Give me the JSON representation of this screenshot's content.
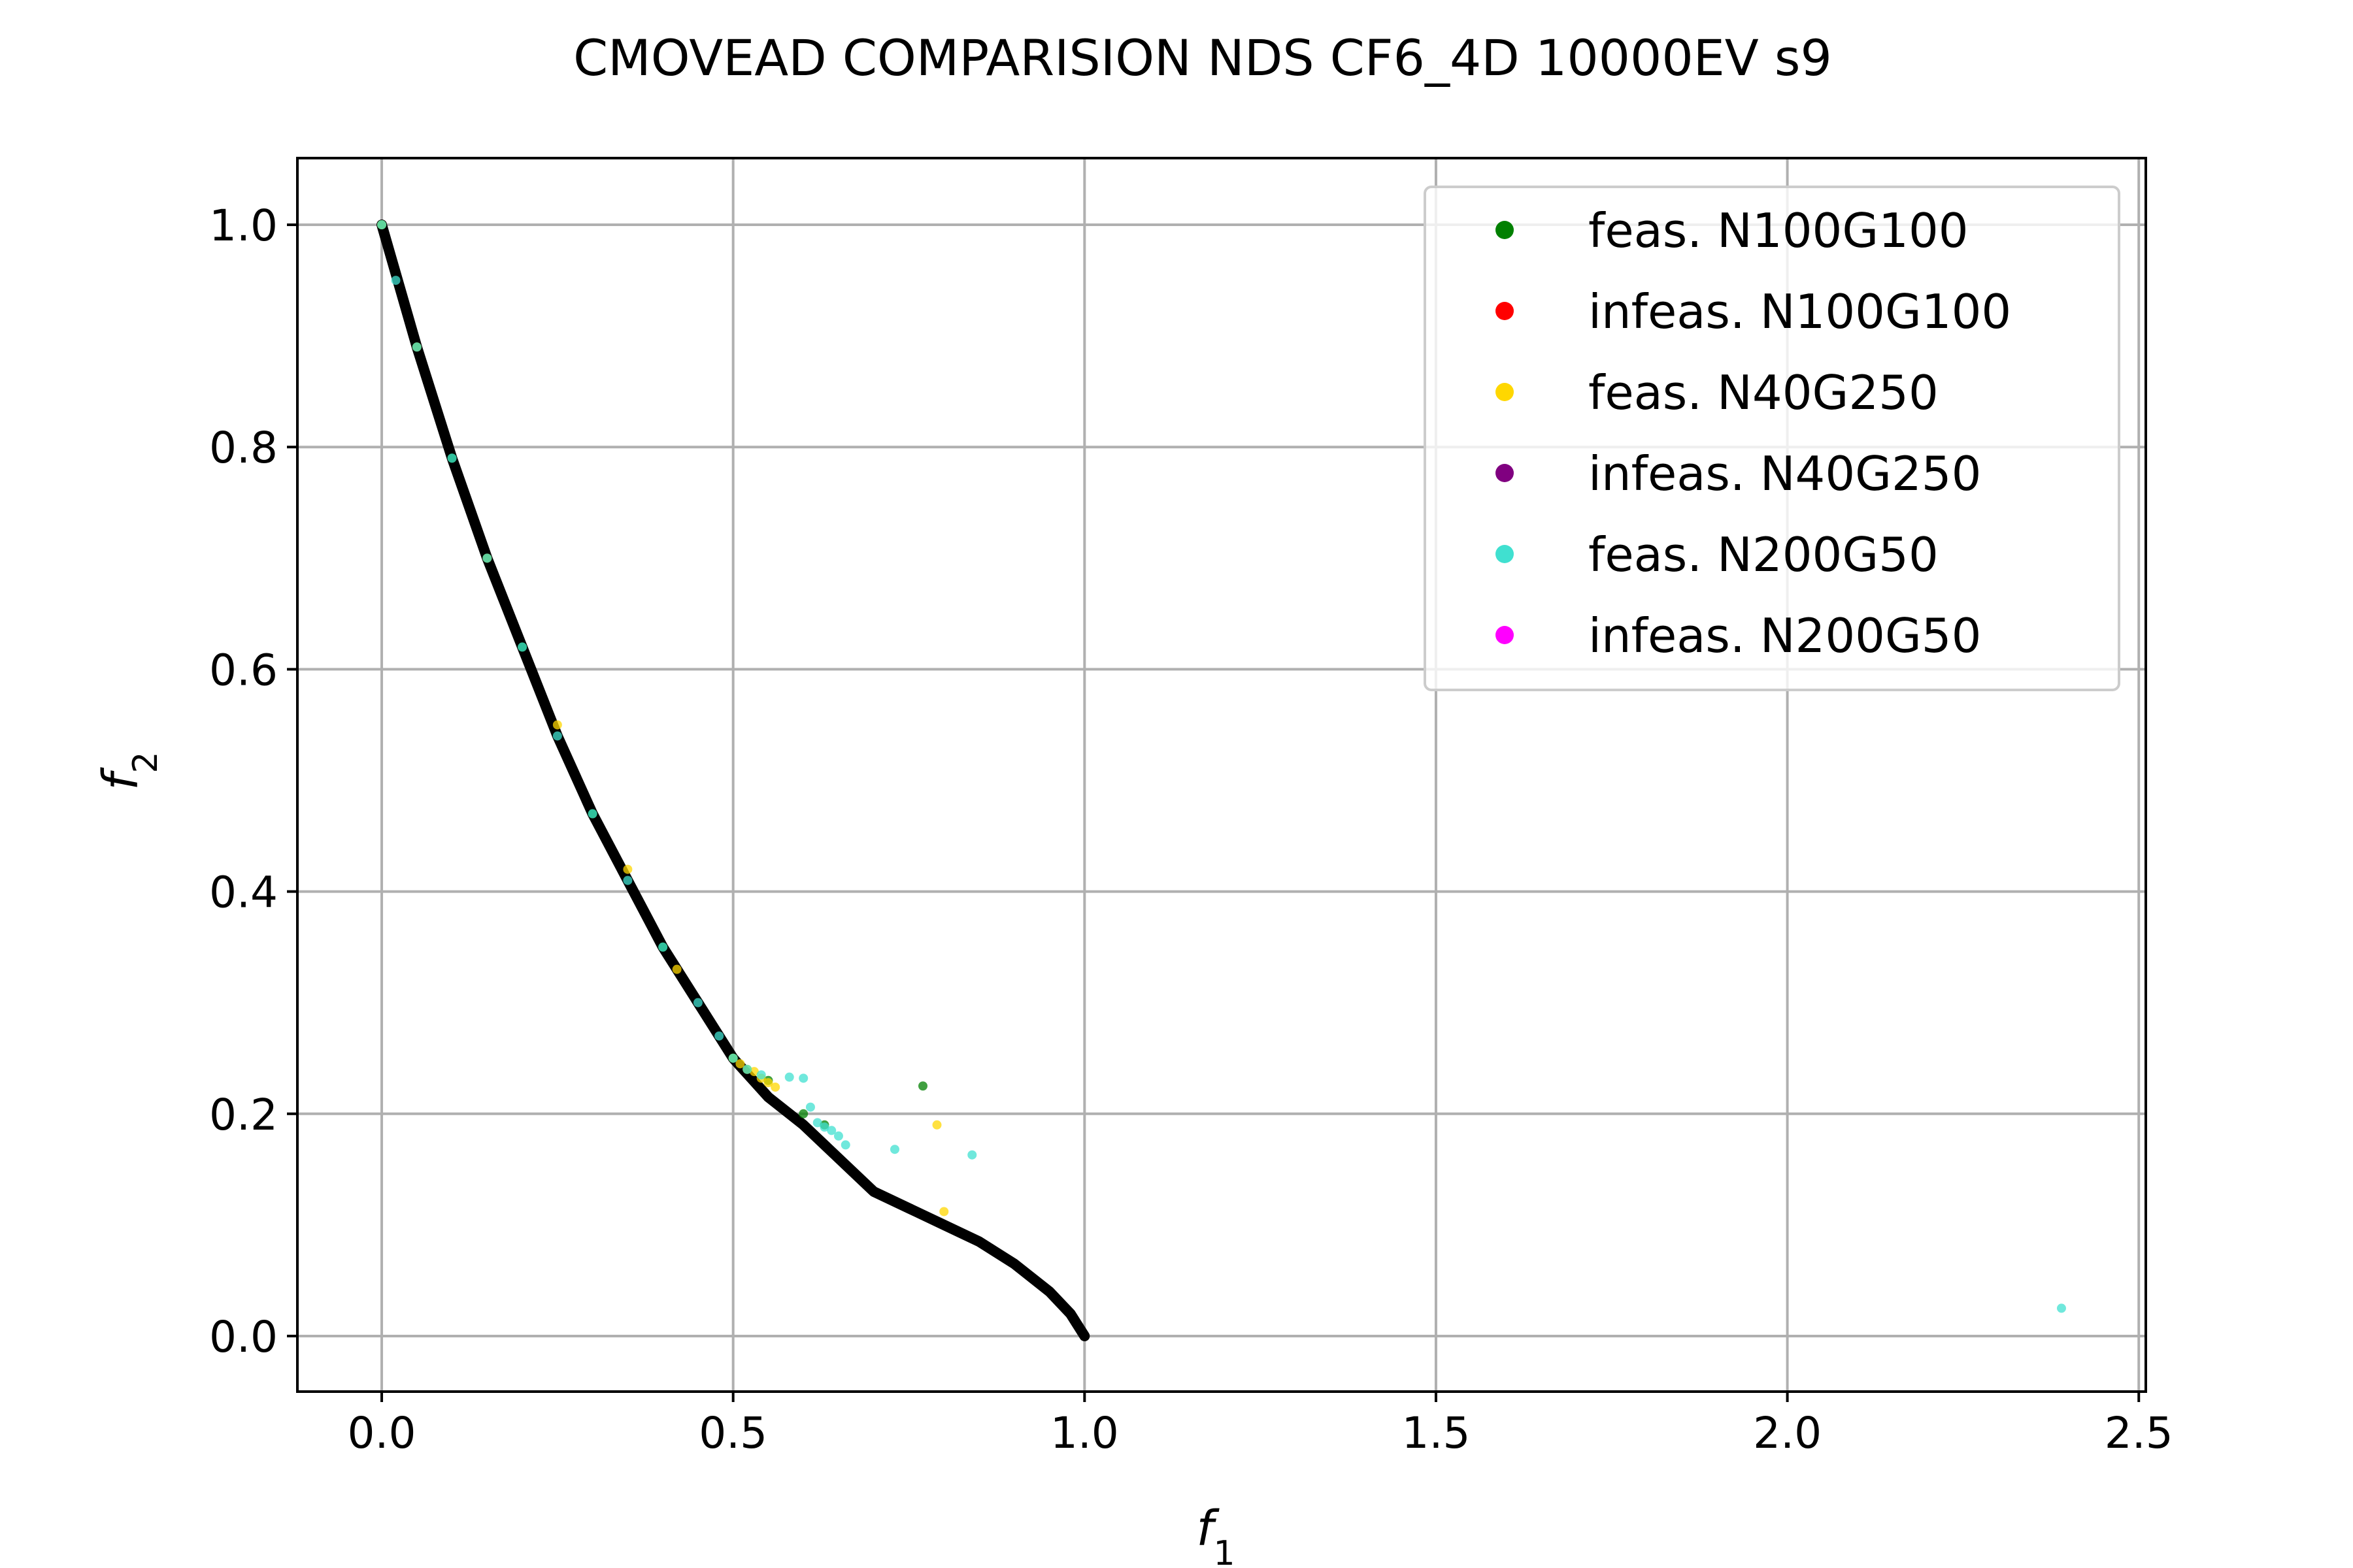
{
  "chart_data": {
    "type": "scatter",
    "title": "CMOVEAD COMPARISION NDS CF6_4D 10000EV s9",
    "xlabel": "f",
    "xlabel_sub": "1",
    "ylabel": "f",
    "ylabel_sub": "2",
    "xlim": [
      -0.12,
      2.51
    ],
    "ylim": [
      -0.05,
      1.06
    ],
    "xticks": [
      0.0,
      0.5,
      1.0,
      1.5,
      2.0,
      2.5
    ],
    "xtick_labels": [
      "0.0",
      "0.5",
      "1.0",
      "1.5",
      "2.0",
      "2.5"
    ],
    "yticks": [
      0.0,
      0.2,
      0.4,
      0.6,
      0.8,
      1.0
    ],
    "ytick_labels": [
      "0.0",
      "0.2",
      "0.4",
      "0.6",
      "0.8",
      "1.0"
    ],
    "grid": true,
    "legend_position": "top-right",
    "reference_front": {
      "color": "#000000",
      "x": [
        0.0,
        0.05,
        0.1,
        0.15,
        0.2,
        0.25,
        0.3,
        0.35,
        0.4,
        0.45,
        0.5,
        0.55,
        0.6,
        0.65,
        0.7,
        0.75,
        0.8,
        0.85,
        0.9,
        0.95,
        0.98,
        1.0
      ],
      "y": [
        1.0,
        0.89,
        0.79,
        0.7,
        0.62,
        0.54,
        0.47,
        0.41,
        0.35,
        0.3,
        0.25,
        0.215,
        0.19,
        0.16,
        0.13,
        0.115,
        0.1,
        0.085,
        0.065,
        0.04,
        0.02,
        0.0
      ]
    },
    "series": [
      {
        "name": "feas. N100G100",
        "color": "#008000",
        "x": [
          0.0,
          0.1,
          0.2,
          0.3,
          0.4,
          0.5,
          0.55,
          0.6,
          0.63,
          0.77
        ],
        "y": [
          1.0,
          0.79,
          0.62,
          0.47,
          0.35,
          0.25,
          0.23,
          0.2,
          0.19,
          0.225
        ]
      },
      {
        "name": "infeas. N100G100",
        "color": "#ff0000",
        "x": [],
        "y": []
      },
      {
        "name": "feas. N40G250",
        "color": "#ffd700",
        "x": [
          0.0,
          0.05,
          0.15,
          0.25,
          0.35,
          0.42,
          0.5,
          0.51,
          0.52,
          0.53,
          0.54,
          0.55,
          0.56,
          0.79,
          0.8
        ],
        "y": [
          1.0,
          0.89,
          0.7,
          0.55,
          0.42,
          0.33,
          0.25,
          0.245,
          0.24,
          0.238,
          0.232,
          0.228,
          0.224,
          0.19,
          0.112
        ]
      },
      {
        "name": "infeas. N40G250",
        "color": "#800080",
        "x": [],
        "y": []
      },
      {
        "name": "feas. N200G50",
        "color": "#40e0d0",
        "x": [
          0.0,
          0.02,
          0.05,
          0.1,
          0.15,
          0.2,
          0.25,
          0.3,
          0.35,
          0.4,
          0.45,
          0.48,
          0.5,
          0.52,
          0.54,
          0.58,
          0.6,
          0.61,
          0.62,
          0.63,
          0.64,
          0.65,
          0.66,
          0.73,
          0.84,
          2.39
        ],
        "y": [
          1.0,
          0.95,
          0.89,
          0.79,
          0.7,
          0.62,
          0.54,
          0.47,
          0.41,
          0.35,
          0.3,
          0.27,
          0.25,
          0.24,
          0.235,
          0.233,
          0.232,
          0.206,
          0.192,
          0.188,
          0.185,
          0.18,
          0.172,
          0.168,
          0.163,
          0.025
        ]
      },
      {
        "name": "infeas. N200G50",
        "color": "#ff00ff",
        "x": [],
        "y": []
      }
    ]
  }
}
